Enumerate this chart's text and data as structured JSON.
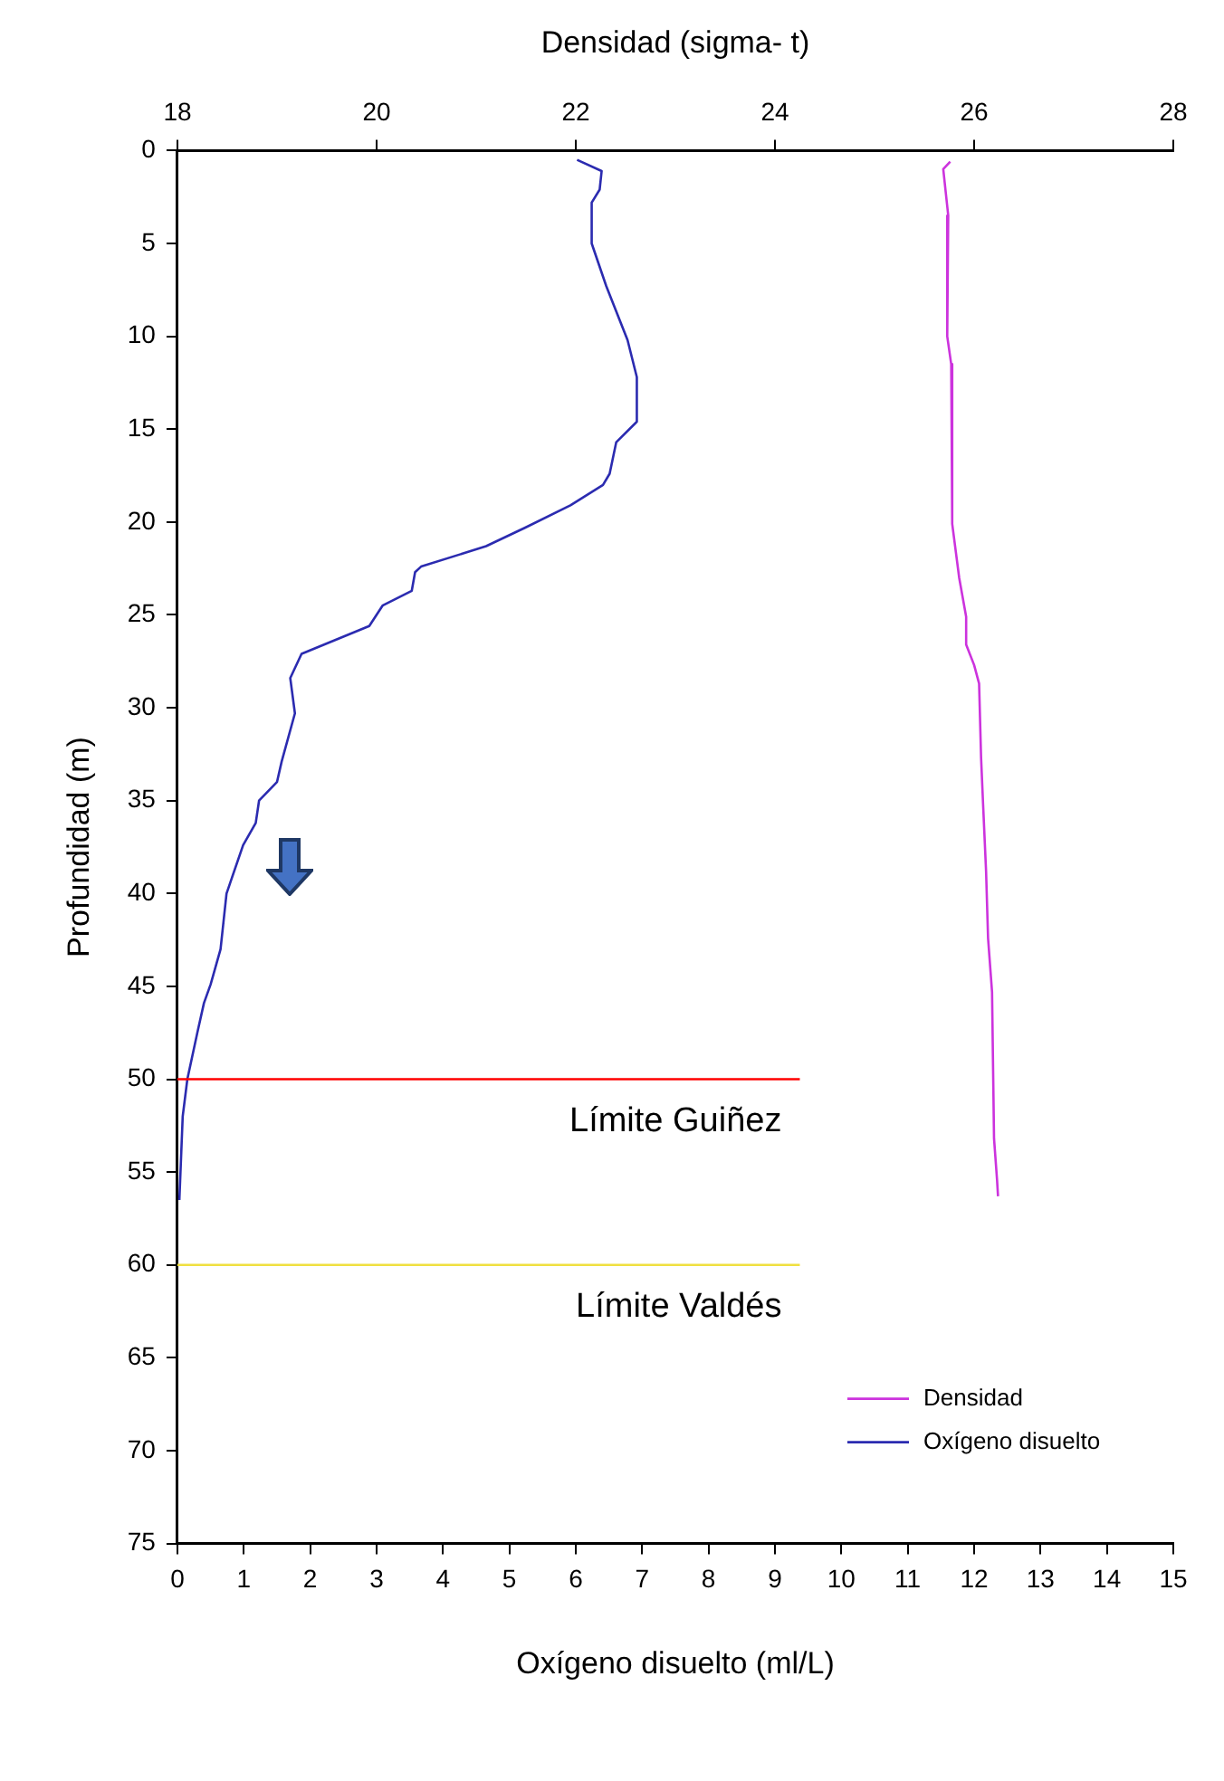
{
  "chart_data": {
    "type": "line",
    "xlabel": "Oxígeno disuelto (ml/L)",
    "x2label": "Densidad (sigma- t)",
    "ylabel": "Profundidad (m)",
    "xlim": [
      0,
      15
    ],
    "xticks": [
      0,
      1,
      2,
      3,
      4,
      5,
      6,
      7,
      8,
      9,
      10,
      11,
      12,
      13,
      14,
      15
    ],
    "x2lim": [
      18,
      28
    ],
    "x2ticks": [
      18,
      20,
      22,
      24,
      26,
      28
    ],
    "ylim": [
      75,
      0
    ],
    "yticks": [
      0,
      5,
      10,
      15,
      20,
      25,
      30,
      35,
      40,
      45,
      50,
      55,
      60,
      65,
      70,
      75
    ],
    "grid": false,
    "legend": "bottom right",
    "marker": "none",
    "line_style": "solid",
    "series": [
      {
        "name": "Densidad",
        "color": "#cc33dd",
        "axis": "x2",
        "x": [
          25.76,
          25.69,
          25.74,
          25.73,
          25.77,
          25.78,
          25.85,
          25.92,
          25.92,
          26.0,
          26.05,
          26.07,
          26.09,
          26.12,
          26.14,
          26.18,
          26.2,
          26.23,
          26.24
        ],
        "values": [
          0.6,
          1.0,
          3.5,
          10.0,
          11.5,
          20.1,
          23.0,
          25.1,
          26.6,
          27.7,
          28.7,
          32.7,
          35.2,
          38.8,
          42.4,
          45.3,
          53.2,
          55.4,
          56.3
        ]
      },
      {
        "name": "Oxígeno disuelto",
        "color": "#2b2bb0",
        "x": [
          6.02,
          6.39,
          6.36,
          6.24,
          6.24,
          6.46,
          6.78,
          6.92,
          6.92,
          6.61,
          6.51,
          6.41,
          5.92,
          5.24,
          4.65,
          3.67,
          3.58,
          3.53,
          3.09,
          2.89,
          1.87,
          1.7,
          1.77,
          1.57,
          1.5,
          1.23,
          1.18,
          0.99,
          0.74,
          0.65,
          0.5,
          0.4,
          0.3,
          0.15,
          0.08,
          0.03
        ],
        "values": [
          0.5,
          1.1,
          2.1,
          2.8,
          5.0,
          7.3,
          10.2,
          12.2,
          14.6,
          15.7,
          17.4,
          18.0,
          19.1,
          20.3,
          21.3,
          22.4,
          22.7,
          23.7,
          24.5,
          25.6,
          27.1,
          28.4,
          30.3,
          32.9,
          34.0,
          35.0,
          36.2,
          37.4,
          40.0,
          43.0,
          44.9,
          45.9,
          47.5,
          50.0,
          52.0,
          56.5
        ]
      }
    ],
    "ref_lines": [
      {
        "axis": "y",
        "value": 50,
        "label": "Límite Guiñez",
        "color": "#ff0000"
      },
      {
        "axis": "y",
        "value": 60,
        "label": "Límite Valdés",
        "color": "#f0e040"
      }
    ]
  }
}
